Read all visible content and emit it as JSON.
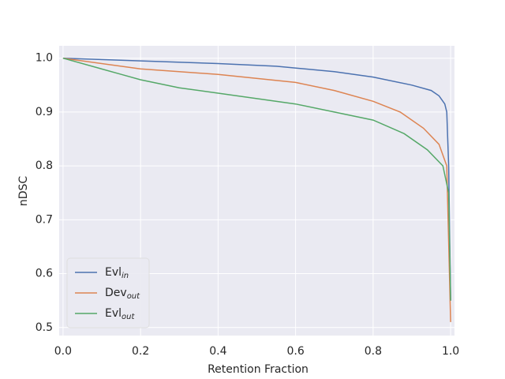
{
  "chart_data": {
    "type": "line",
    "x_label": "Retention Fraction",
    "y_label": "nDSC",
    "xlim": [
      -0.01,
      1.01
    ],
    "ylim": [
      0.485,
      1.023
    ],
    "xticks": [
      {
        "value": 0,
        "label": "0.0"
      },
      0.2,
      0.4,
      0.6,
      0.8,
      {
        "value": 1,
        "label": "1.0"
      }
    ],
    "yticks": [
      0.5,
      0.6,
      0.7,
      0.8,
      0.9,
      {
        "value": 1,
        "label": "1.0"
      }
    ],
    "grid": true,
    "legend": "lower left",
    "series": [
      {
        "name": "Evl",
        "subscript": "in",
        "color": "#4c72b0",
        "x": [
          0,
          0.2,
          0.4,
          0.55,
          0.7,
          0.8,
          0.9,
          0.95,
          0.97,
          0.985,
          0.99,
          0.995,
          1.0
        ],
        "values": [
          1.0,
          0.995,
          0.99,
          0.985,
          0.975,
          0.965,
          0.95,
          0.94,
          0.93,
          0.915,
          0.9,
          0.8,
          0.55
        ]
      },
      {
        "name": "Dev",
        "subscript": "out",
        "color": "#dd8452",
        "x": [
          0,
          0.2,
          0.4,
          0.6,
          0.7,
          0.8,
          0.87,
          0.93,
          0.97,
          0.99,
          1.0
        ],
        "values": [
          1.0,
          0.98,
          0.97,
          0.955,
          0.94,
          0.92,
          0.9,
          0.87,
          0.84,
          0.8,
          0.51
        ]
      },
      {
        "name": "Evl",
        "subscript": "out",
        "color": "#55a868",
        "x": [
          0,
          0.15,
          0.2,
          0.3,
          0.4,
          0.5,
          0.6,
          0.7,
          0.8,
          0.88,
          0.94,
          0.98,
          0.995,
          1.0
        ],
        "values": [
          1.0,
          0.97,
          0.96,
          0.945,
          0.935,
          0.925,
          0.915,
          0.9,
          0.885,
          0.86,
          0.83,
          0.8,
          0.75,
          0.55
        ]
      }
    ]
  }
}
